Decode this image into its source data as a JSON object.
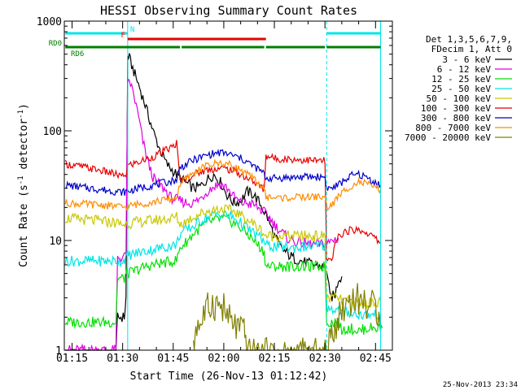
{
  "chart_data": {
    "type": "line",
    "title": "HESSI Observing Summary Count Rates",
    "xlabel": "Start Time (26-Nov-13 01:12:42)",
    "ylabel_main": "Count Rate (s",
    "ylabel_sup1": "-1",
    "ylabel_mid": " detector",
    "ylabel_sup2": "-1",
    "ylabel_end": ")",
    "y_scale": "log",
    "ylim": [
      1,
      1000
    ],
    "x_tick_labels": [
      "01:15",
      "01:30",
      "01:45",
      "02:00",
      "02:15",
      "02:30",
      "02:45"
    ],
    "x_tick_minutes": [
      15,
      30,
      45,
      60,
      75,
      90,
      105
    ],
    "xlim_minutes": [
      12.7,
      110
    ],
    "y_tick_labels": [
      "1",
      "10",
      "100",
      "1000"
    ],
    "y_tick_values": [
      1,
      10,
      100,
      1000
    ],
    "legend_header": [
      "Det 1,3,5,6,7,9,",
      "FDecim 1, Att 0"
    ],
    "legend_position": "right",
    "timestamp": "25-Nov-2013 23:34",
    "night_intervals_minutes": [
      [
        12.7,
        31.5
      ],
      [
        90.5,
        106.5
      ]
    ],
    "flags": [
      {
        "label": "N",
        "color": "#00e5e5",
        "segments": [
          [
            13,
            31.5
          ],
          [
            90.5,
            106.5
          ]
        ]
      },
      {
        "label": "F",
        "color": "#e80000",
        "segments": [
          [
            31.5,
            72.5
          ]
        ]
      },
      {
        "label": "RD0",
        "color": "#008000",
        "segments": [
          [
            13,
            47
          ],
          [
            47.5,
            72
          ],
          [
            72.5,
            90
          ],
          [
            90.5,
            106.5
          ]
        ]
      },
      {
        "label": "RD6",
        "color": "#008000",
        "segments": []
      }
    ],
    "series": [
      {
        "name": "3 - 6 keV",
        "color": "#000000",
        "x": [
          13,
          28,
          28.5,
          30.5,
          31,
          31.5,
          32,
          33,
          35,
          37,
          39,
          41,
          43,
          45,
          47,
          49,
          51,
          53,
          55,
          57,
          59,
          61,
          63,
          65,
          67,
          69,
          71,
          73,
          75,
          77,
          79,
          81,
          83,
          85,
          87,
          89,
          90.5,
          91.5,
          93,
          94,
          95
        ],
        "y": [
          0.9,
          0.9,
          2,
          2,
          3,
          480,
          460,
          370,
          250,
          160,
          100,
          68,
          50,
          43,
          37,
          33,
          30,
          31,
          36,
          40,
          34,
          26,
          22,
          23,
          28,
          26,
          21,
          16,
          11,
          8.5,
          7.5,
          6.8,
          6.5,
          6.2,
          6,
          5.8,
          5.5,
          3,
          3.2,
          4.5,
          4.7
        ]
      },
      {
        "name": "6 - 12 keV",
        "color": "#e000e0",
        "x": [
          13,
          28,
          28.5,
          30.5,
          31,
          31.5,
          32,
          33,
          34,
          35,
          36,
          37,
          38,
          39,
          40,
          41,
          42,
          43,
          44,
          45,
          47,
          49,
          51,
          53,
          55,
          57,
          59,
          61,
          63,
          65,
          67,
          69,
          71,
          73,
          75,
          77,
          79,
          81,
          83,
          85,
          87,
          89,
          90.5,
          91,
          92,
          94
        ],
        "y": [
          1,
          1,
          7,
          7,
          8,
          250,
          290,
          230,
          170,
          120,
          80,
          60,
          46,
          38,
          34,
          32,
          30,
          28,
          25,
          24,
          23,
          22,
          22,
          24,
          28,
          31,
          33,
          30,
          25,
          22,
          22,
          21,
          19,
          17,
          14,
          12,
          10.5,
          9.8,
          9.5,
          9.3,
          9.2,
          9.2,
          9.2,
          9.5,
          10,
          10.5
        ]
      },
      {
        "name": "12 - 25 keV",
        "color": "#00e000",
        "x": [
          13,
          18,
          24,
          28,
          28.5,
          30.5,
          31,
          31.5,
          33,
          35,
          37,
          39,
          41,
          43,
          45,
          46,
          47,
          49,
          51,
          53,
          55,
          57,
          59,
          61,
          63,
          65,
          67,
          69,
          71,
          72,
          72.5,
          75,
          80,
          85,
          90,
          90.5,
          92,
          94,
          95,
          97,
          100,
          103,
          106.5,
          107
        ],
        "y": [
          1.8,
          1.8,
          1.8,
          1.8,
          4.5,
          4.5,
          5,
          5,
          5.2,
          5.5,
          5.8,
          6,
          6.2,
          6.3,
          6.5,
          6.6,
          8.5,
          9.8,
          11.5,
          13,
          14.5,
          15.2,
          15.8,
          15.5,
          14.5,
          13,
          11.5,
          10,
          8.5,
          7.8,
          5.8,
          5.8,
          5.8,
          5.8,
          5.8,
          1.8,
          1.8,
          1.8,
          1.5,
          1.6,
          1.5,
          1.6,
          1.6,
          1.6
        ]
      },
      {
        "name": "25 - 50 keV",
        "color": "#00e5e5",
        "x": [
          13,
          18,
          24,
          28,
          30,
          31.5,
          33,
          35,
          37,
          39,
          41,
          43,
          45,
          46,
          47,
          49,
          51,
          53,
          55,
          57,
          59,
          61,
          63,
          65,
          67,
          69,
          71,
          72,
          72.5,
          75,
          80,
          85,
          90,
          90.5,
          92,
          94,
          95,
          97,
          100,
          103,
          106.5
        ],
        "y": [
          6.5,
          6.5,
          6.5,
          6.5,
          6.5,
          7.3,
          7.5,
          7.8,
          8,
          8.3,
          8.5,
          8.8,
          9,
          9.2,
          11.5,
          12.5,
          13.5,
          15,
          16.2,
          17,
          17.5,
          17,
          16,
          14.5,
          13,
          11.5,
          10.5,
          9.8,
          9,
          8.8,
          8.6,
          8.8,
          9,
          2.5,
          2.4,
          2.3,
          2.2,
          2.2,
          2.1,
          2.1,
          2.1
        ]
      },
      {
        "name": "50 - 100 keV",
        "color": "#c8c800",
        "x": [
          13,
          18,
          24,
          28,
          30,
          31.5,
          33,
          35,
          37,
          39,
          41,
          43,
          45,
          46,
          47,
          49,
          51,
          53,
          55,
          57,
          59,
          61,
          63,
          65,
          67,
          69,
          71,
          72,
          72.5,
          75,
          80,
          85,
          90,
          90.5,
          92,
          94,
          95,
          97,
          100,
          103,
          106.5
        ],
        "y": [
          16,
          15.5,
          15,
          14.5,
          14,
          14.2,
          14.5,
          14.8,
          15,
          15.3,
          15.5,
          15.7,
          16,
          16.5,
          14,
          15,
          16.5,
          17.5,
          18.5,
          19,
          19.5,
          19,
          18.5,
          17,
          15.5,
          14,
          12.5,
          11.5,
          11,
          11,
          11,
          11,
          11,
          3,
          3,
          3,
          2.8,
          2.8,
          2.7,
          2.7,
          2.8
        ]
      },
      {
        "name": "100 - 300 keV",
        "color": "#e80000",
        "x": [
          13,
          18,
          24,
          28,
          30,
          31,
          31.5,
          33,
          35,
          37,
          39,
          41,
          43,
          45,
          46,
          47,
          49,
          51,
          53,
          55,
          57,
          59,
          61,
          63,
          65,
          67,
          69,
          71,
          72,
          72.5,
          75,
          80,
          85,
          90,
          90.5,
          92,
          93,
          94,
          96,
          98,
          100,
          102,
          104,
          106.5
        ],
        "y": [
          50,
          47,
          43,
          40,
          38,
          40,
          48,
          50,
          52,
          55,
          58,
          62,
          67,
          72,
          78,
          35,
          37,
          40,
          42,
          44,
          45,
          45.5,
          45,
          43,
          40,
          37,
          34,
          31,
          29,
          60,
          56,
          55,
          54,
          53,
          6.5,
          6.5,
          9,
          11,
          12,
          12.5,
          12.5,
          12,
          11,
          9.5
        ]
      },
      {
        "name": "300 - 800 keV",
        "color": "#0000c8",
        "x": [
          13,
          18,
          24,
          28,
          30,
          31.5,
          33,
          35,
          37,
          39,
          41,
          43,
          45,
          46,
          47,
          49,
          51,
          53,
          55,
          57,
          59,
          61,
          63,
          65,
          67,
          69,
          71,
          72,
          72.5,
          75,
          80,
          85,
          90,
          90.5,
          92,
          94,
          96,
          98,
          100,
          102,
          104,
          106.5
        ],
        "y": [
          32,
          30.5,
          29,
          28,
          27.5,
          28,
          29,
          30,
          31,
          32,
          33,
          34,
          35,
          36,
          46,
          50,
          54,
          57,
          60,
          62,
          63,
          62,
          59,
          56,
          52,
          47,
          43,
          40,
          37,
          37,
          37.5,
          38,
          38,
          30,
          30,
          32,
          36,
          39,
          40,
          38,
          35,
          32
        ]
      },
      {
        "name": "800 - 7000 keV",
        "color": "#ff8c00",
        "x": [
          13,
          18,
          24,
          28,
          30,
          31.5,
          33,
          35,
          37,
          39,
          41,
          43,
          45,
          46,
          47,
          49,
          51,
          53,
          55,
          57,
          59,
          61,
          63,
          65,
          67,
          69,
          71,
          72,
          72.5,
          75,
          80,
          85,
          90,
          90.5,
          92,
          94,
          96,
          98,
          100,
          102,
          104,
          106.5
        ],
        "y": [
          22,
          21.5,
          21,
          20.5,
          20,
          20.5,
          21,
          21.5,
          22,
          22.5,
          23,
          23.5,
          24,
          24.5,
          33,
          37,
          41,
          45,
          48,
          50,
          51,
          50,
          47,
          44,
          40,
          36,
          32,
          29,
          25,
          24.5,
          24.5,
          25,
          25,
          20,
          21,
          25,
          29,
          32,
          34,
          33,
          31,
          29
        ]
      },
      {
        "name": "7000 - 20000 keV",
        "color": "#808000",
        "x": [
          51,
          51.5,
          52,
          53,
          54,
          55,
          55.5,
          56,
          57,
          58,
          59,
          60,
          61,
          62,
          63,
          64,
          65,
          66,
          66.5,
          67,
          91,
          91.5,
          92,
          93,
          94,
          95,
          96,
          97,
          98,
          99,
          100,
          101,
          102,
          103,
          104,
          105,
          106,
          106.5
        ],
        "y": [
          0.9,
          1.5,
          1.8,
          1.7,
          2.1,
          2.3,
          2.4,
          2.6,
          2.7,
          2.6,
          2.5,
          2.4,
          2.0,
          1.8,
          1.7,
          1.6,
          1.5,
          1.4,
          1.2,
          0.9,
          0.9,
          1.2,
          1.5,
          1.7,
          2.0,
          2.3,
          2.6,
          2.8,
          3.0,
          3.0,
          2.9,
          2.8,
          2.7,
          2.6,
          2.5,
          2.4,
          2.3,
          2.2
        ]
      }
    ]
  }
}
